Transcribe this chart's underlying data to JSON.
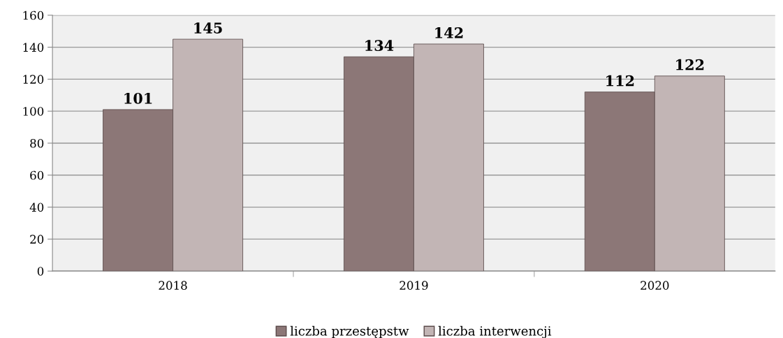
{
  "chart_data": {
    "type": "bar",
    "categories": [
      "2018",
      "2019",
      "2020"
    ],
    "series": [
      {
        "name": "liczba przestępstw",
        "color": "#8c7777",
        "values": [
          101,
          134,
          112
        ]
      },
      {
        "name": "liczba interwencji",
        "color": "#c2b5b5",
        "values": [
          145,
          142,
          122
        ]
      }
    ],
    "ylim": [
      0,
      160
    ],
    "yticks": [
      0,
      20,
      40,
      60,
      80,
      100,
      120,
      140,
      160
    ],
    "grid": "y",
    "legend": "bottom",
    "data_labels": true
  }
}
